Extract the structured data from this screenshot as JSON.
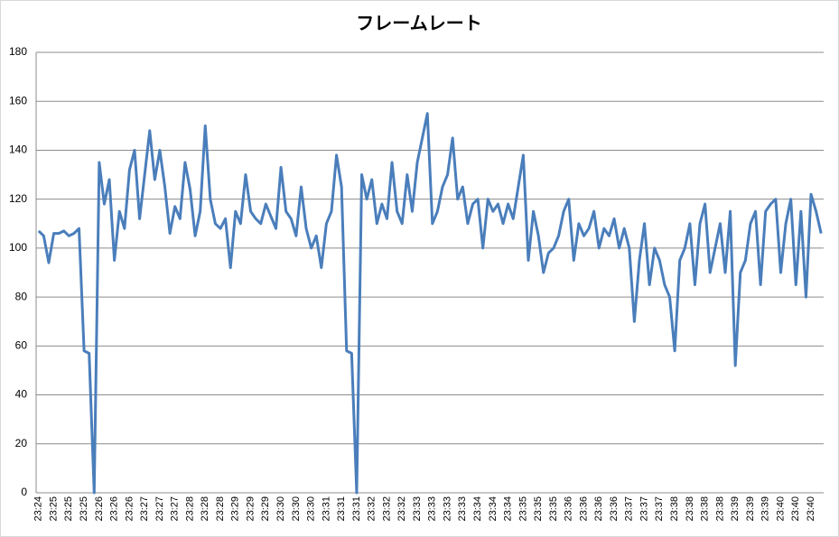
{
  "chart_data": {
    "type": "line",
    "title": "フレームレート",
    "categories": [
      "23:24",
      null,
      null,
      "23:25",
      null,
      null,
      "23:25",
      null,
      null,
      "23:25",
      null,
      null,
      "23:26",
      null,
      null,
      "23:26",
      null,
      null,
      "23:26",
      null,
      null,
      "23:27",
      null,
      null,
      "23:27",
      null,
      null,
      "23:27",
      null,
      null,
      "23:28",
      null,
      null,
      "23:28",
      null,
      null,
      "23:28",
      null,
      null,
      "23:29",
      null,
      null,
      "23:29",
      null,
      null,
      "23:29",
      null,
      null,
      "23:30",
      null,
      null,
      "23:30",
      null,
      null,
      "23:30",
      null,
      null,
      "23:31",
      null,
      null,
      "23:31",
      null,
      null,
      "23:31",
      null,
      null,
      "23:32",
      null,
      null,
      "23:32",
      null,
      null,
      "23:32",
      null,
      null,
      "23:33",
      null,
      null,
      "23:33",
      null,
      null,
      "23:33",
      null,
      null,
      "23:33",
      null,
      null,
      "23:34",
      null,
      null,
      "23:34",
      null,
      null,
      "23:34",
      null,
      null,
      "23:35",
      null,
      null,
      "23:35",
      null,
      null,
      "23:35",
      null,
      null,
      "23:36",
      null,
      null,
      "23:36",
      null,
      null,
      "23:36",
      null,
      null,
      "23:36",
      null,
      null,
      "23:37",
      null,
      null,
      "23:37",
      null,
      null,
      "23:37",
      null,
      null,
      "23:38",
      null,
      null,
      "23:38",
      null,
      null,
      "23:38",
      null,
      null,
      "23:38",
      null,
      null,
      "23:39",
      null,
      null,
      "23:39",
      null,
      null,
      "23:39",
      null,
      null,
      "23:40",
      null,
      null,
      "23:40",
      null,
      null,
      "23:40",
      null,
      null
    ],
    "values": [
      107,
      105,
      94,
      106,
      106,
      107,
      105,
      106,
      108,
      58,
      57,
      0,
      135,
      118,
      128,
      95,
      115,
      108,
      132,
      140,
      112,
      130,
      148,
      128,
      140,
      125,
      106,
      117,
      112,
      135,
      124,
      105,
      115,
      150,
      120,
      110,
      108,
      112,
      92,
      115,
      110,
      130,
      115,
      112,
      110,
      118,
      113,
      108,
      133,
      115,
      112,
      105,
      125,
      108,
      100,
      105,
      92,
      110,
      115,
      138,
      125,
      58,
      57,
      0,
      130,
      120,
      128,
      110,
      118,
      112,
      135,
      115,
      110,
      130,
      115,
      135,
      145,
      155,
      110,
      115,
      125,
      130,
      145,
      120,
      125,
      110,
      118,
      120,
      100,
      120,
      115,
      118,
      110,
      118,
      112,
      125,
      138,
      95,
      115,
      105,
      90,
      98,
      100,
      105,
      115,
      120,
      95,
      110,
      105,
      108,
      115,
      100,
      108,
      105,
      112,
      100,
      108,
      100,
      70,
      95,
      110,
      85,
      100,
      95,
      85,
      80,
      58,
      95,
      100,
      110,
      85,
      110,
      118,
      90,
      100,
      110,
      90,
      115,
      52,
      90,
      95,
      110,
      115,
      85,
      115,
      118,
      120,
      90,
      110,
      120,
      85,
      115,
      80,
      122,
      115,
      106
    ],
    "color": "#4a7ebb",
    "ylim": [
      0,
      180
    ],
    "yticks": [
      0,
      20,
      40,
      60,
      80,
      100,
      120,
      140,
      160,
      180
    ],
    "grid": true
  }
}
